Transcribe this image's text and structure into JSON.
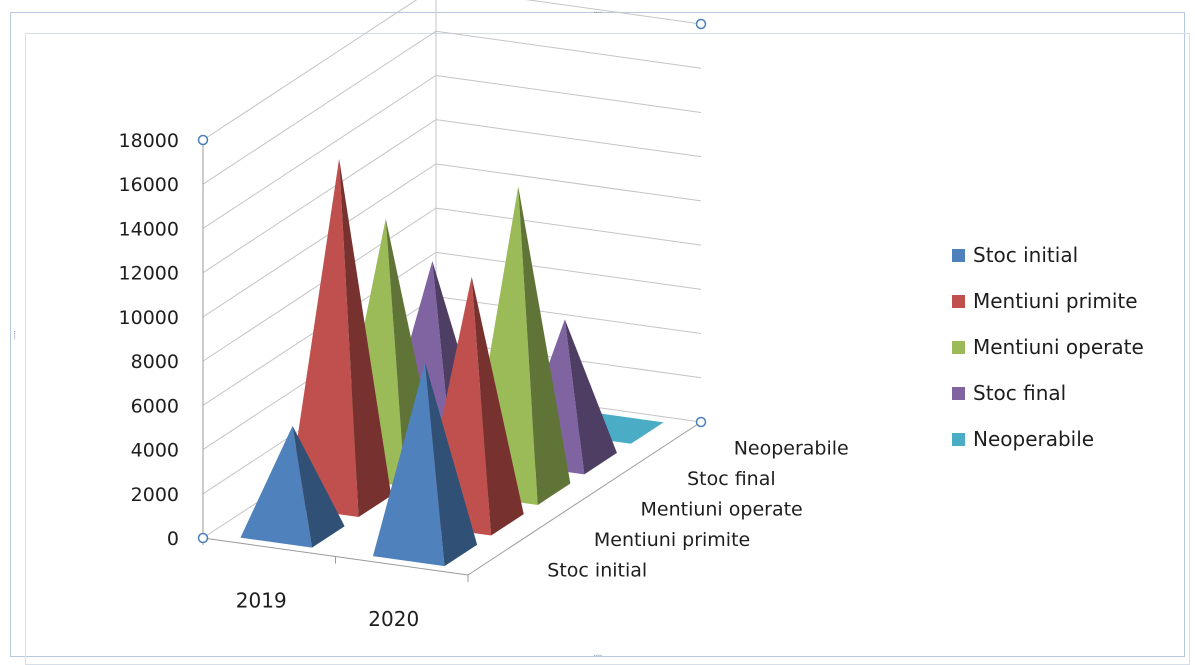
{
  "chart_data": {
    "type": "bar",
    "variant": "3d-pyramid",
    "categories": [
      "2019",
      "2020"
    ],
    "series": [
      {
        "name": "Stoc initial",
        "color": "#4f81bd",
        "values": [
          4800,
          8500
        ]
      },
      {
        "name": "Mentiuni primite",
        "color": "#c0504d",
        "values": [
          15500,
          11000
        ]
      },
      {
        "name": "Mentiuni operate",
        "color": "#9bbb59",
        "values": [
          11400,
          13700
        ]
      },
      {
        "name": "Stoc final",
        "color": "#8064a2",
        "values": [
          8100,
          6300
        ]
      },
      {
        "name": "Neoperabile",
        "color": "#4bacc6",
        "values": [
          0,
          100
        ]
      }
    ],
    "y_ticks": [
      "0",
      "2000",
      "4000",
      "6000",
      "8000",
      "10000",
      "12000",
      "14000",
      "16000",
      "18000"
    ],
    "depth_labels": [
      "Stoc initial",
      "Mentiuni primite",
      "Mentiuni operate",
      "Stoc final",
      "Neoperabile"
    ],
    "ylim": [
      0,
      18000
    ],
    "grid": true,
    "legend_position": "right",
    "title": "",
    "xlabel": "",
    "ylabel": ""
  }
}
